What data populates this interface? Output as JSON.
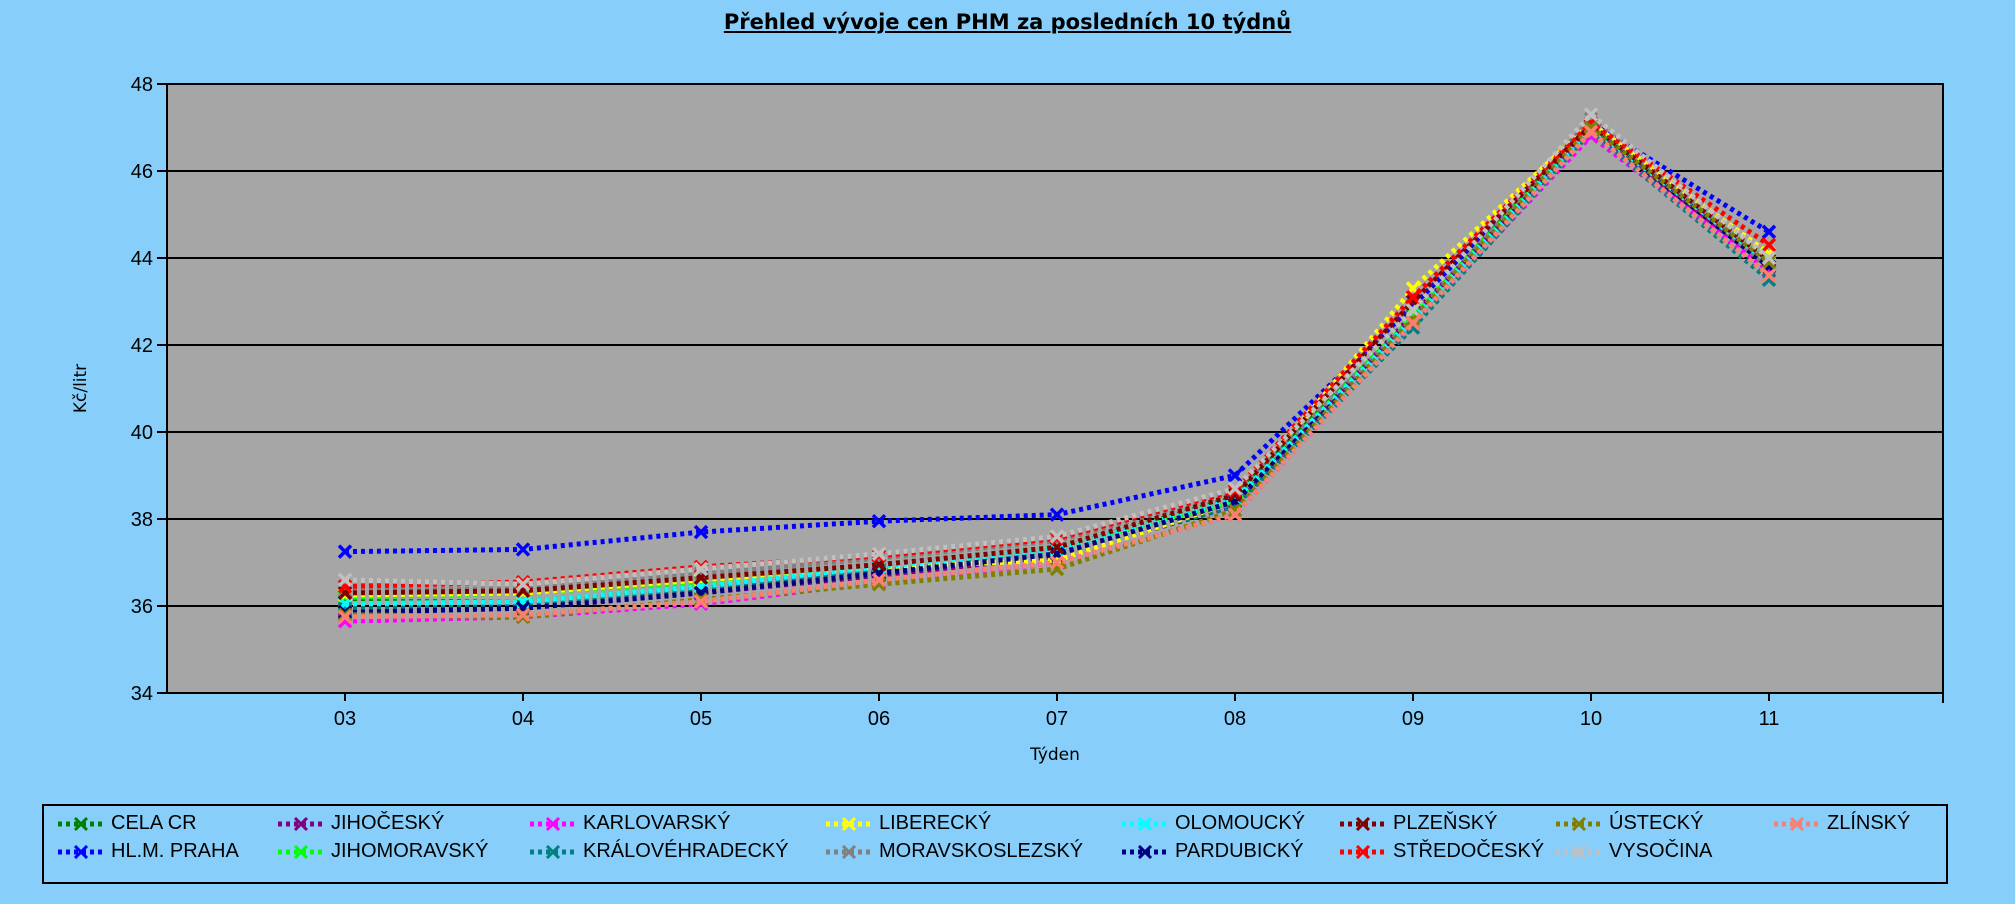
{
  "chart_data": {
    "type": "line",
    "title": "Přehled vývoje cen PHM za posledních 10 týdnů",
    "xlabel": "Týden",
    "ylabel": "Kč/litr",
    "categories": [
      "03",
      "04",
      "05",
      "06",
      "07",
      "08",
      "09",
      "10",
      "11"
    ],
    "ylim": [
      34,
      48
    ],
    "yticks": [
      "34",
      "36",
      "38",
      "40",
      "42",
      "44",
      "46",
      "48"
    ],
    "legend_position": "bottom",
    "series": [
      {
        "name": "CELA CR",
        "color": "#008000",
        "values": [
          36.1,
          36.1,
          36.45,
          36.85,
          37.3,
          38.5,
          42.8,
          47.0,
          43.9
        ]
      },
      {
        "name": "HL.M. PRAHA",
        "color": "#0000ff",
        "values": [
          37.25,
          37.3,
          37.7,
          37.95,
          38.1,
          39.0,
          42.9,
          47.1,
          44.6
        ]
      },
      {
        "name": "JIHOČESKÝ",
        "color": "#800080",
        "values": [
          35.9,
          35.95,
          36.3,
          36.7,
          37.15,
          38.3,
          42.7,
          46.9,
          43.8
        ]
      },
      {
        "name": "JIHOMORAVSKÝ",
        "color": "#00ff00",
        "values": [
          36.2,
          36.3,
          36.55,
          36.95,
          37.35,
          38.4,
          42.7,
          47.0,
          43.9
        ]
      },
      {
        "name": "KARLOVARSKÝ",
        "color": "#ff00ff",
        "values": [
          35.65,
          35.75,
          36.05,
          36.55,
          37.0,
          38.1,
          42.5,
          46.8,
          43.7
        ]
      },
      {
        "name": "KRÁLOVÉHRADECKÝ",
        "color": "#008080",
        "values": [
          35.95,
          36.0,
          36.4,
          36.8,
          37.2,
          38.3,
          42.4,
          46.9,
          43.5
        ]
      },
      {
        "name": "LIBERECKÝ",
        "color": "#ffff00",
        "values": [
          36.25,
          36.3,
          36.6,
          36.9,
          37.05,
          38.4,
          43.3,
          47.1,
          44.1
        ]
      },
      {
        "name": "MORAVSKOSLEZSKÝ",
        "color": "#808080",
        "values": [
          36.35,
          36.4,
          36.75,
          37.1,
          37.5,
          38.6,
          42.6,
          47.2,
          43.8
        ]
      },
      {
        "name": "OLOMOUCKÝ",
        "color": "#00ffff",
        "values": [
          36.05,
          36.1,
          36.45,
          36.9,
          37.3,
          38.45,
          42.6,
          47.0,
          43.9
        ]
      },
      {
        "name": "PARDUBICKÝ",
        "color": "#000080",
        "values": [
          35.85,
          35.95,
          36.3,
          36.75,
          37.2,
          38.4,
          42.5,
          47.0,
          43.8
        ]
      },
      {
        "name": "PLZEŇSKÝ",
        "color": "#800000",
        "values": [
          36.3,
          36.35,
          36.65,
          36.95,
          37.35,
          38.55,
          43.0,
          47.05,
          43.95
        ]
      },
      {
        "name": "STŘEDOČESKÝ",
        "color": "#ff0000",
        "values": [
          36.45,
          36.55,
          36.9,
          37.15,
          37.55,
          38.65,
          43.1,
          47.1,
          44.3
        ]
      },
      {
        "name": "ÚSTECKÝ",
        "color": "#808000",
        "values": [
          35.8,
          35.75,
          36.15,
          36.5,
          36.85,
          38.2,
          42.6,
          47.0,
          43.9
        ]
      },
      {
        "name": "VYSOČINA",
        "color": "#c0c0c0",
        "values": [
          36.6,
          36.5,
          36.85,
          37.2,
          37.6,
          38.7,
          42.8,
          47.3,
          44.0
        ]
      },
      {
        "name": "ZLÍNSKÝ",
        "color": "#fa8072",
        "values": [
          35.75,
          35.8,
          36.1,
          36.6,
          37.0,
          38.1,
          42.5,
          46.9,
          43.6
        ]
      }
    ]
  },
  "legend": {
    "rows": [
      [
        "CELA CR",
        "JIHOČESKÝ",
        "KARLOVARSKÝ",
        "LIBERECKÝ",
        "OLOMOUCKÝ",
        "PLZEŇSKÝ",
        "ÚSTECKÝ",
        "ZLÍNSKÝ"
      ],
      [
        "HL.M. PRAHA",
        "JIHOMORAVSKÝ",
        "KRÁLOVÉHRADECKÝ",
        "MORAVSKOSLEZSKÝ",
        "PARDUBICKÝ",
        "STŘEDOČESKÝ",
        "VYSOČINA"
      ]
    ]
  },
  "colors": {
    "page_background": "#87cefa",
    "plot_background": "#a6a6a6",
    "gridline": "#000000"
  }
}
